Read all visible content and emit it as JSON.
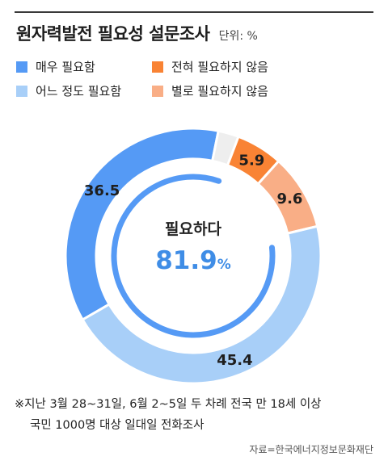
{
  "header": {
    "title": "원자력발전 필요성 설문조사",
    "unit": "단위: %"
  },
  "legend": {
    "items": [
      {
        "label": "매우 필요함",
        "color": "#559af5"
      },
      {
        "label": "전혀 필요하지 않음",
        "color": "#f98334"
      },
      {
        "label": "어느 정도 필요함",
        "color": "#a8cff8"
      },
      {
        "label": "별로 필요하지 않음",
        "color": "#f9ae86"
      }
    ]
  },
  "chart_data": {
    "type": "pie",
    "series": [
      {
        "name": "매우 필요함",
        "value": 36.5,
        "color": "#559af5"
      },
      {
        "name": "",
        "value": 2.6,
        "color": "#eeeeee"
      },
      {
        "name": "전혀 필요하지 않음",
        "value": 5.9,
        "color": "#f98334"
      },
      {
        "name": "별로 필요하지 않음",
        "value": 9.6,
        "color": "#f9ae86"
      },
      {
        "name": "어느 정도 필요함",
        "value": 45.4,
        "color": "#a8cff8"
      }
    ],
    "data_labels": [
      "36.5",
      "",
      "5.9",
      "9.6",
      "45.4"
    ],
    "center_label": "필요하다",
    "center_value": "81.9",
    "center_unit": "%",
    "center_value_color": "#3f8de6",
    "inner_arc_value": 81.9,
    "inner_arc_color": "#559af5"
  },
  "footnote": {
    "line1": "※지난 3월 28~31일, 6월 2~5일 두 차례 전국 만 18세 이상",
    "line2": "국민 1000명 대상 일대일 전화조사"
  },
  "source": "자료=한국에너지정보문화재단"
}
